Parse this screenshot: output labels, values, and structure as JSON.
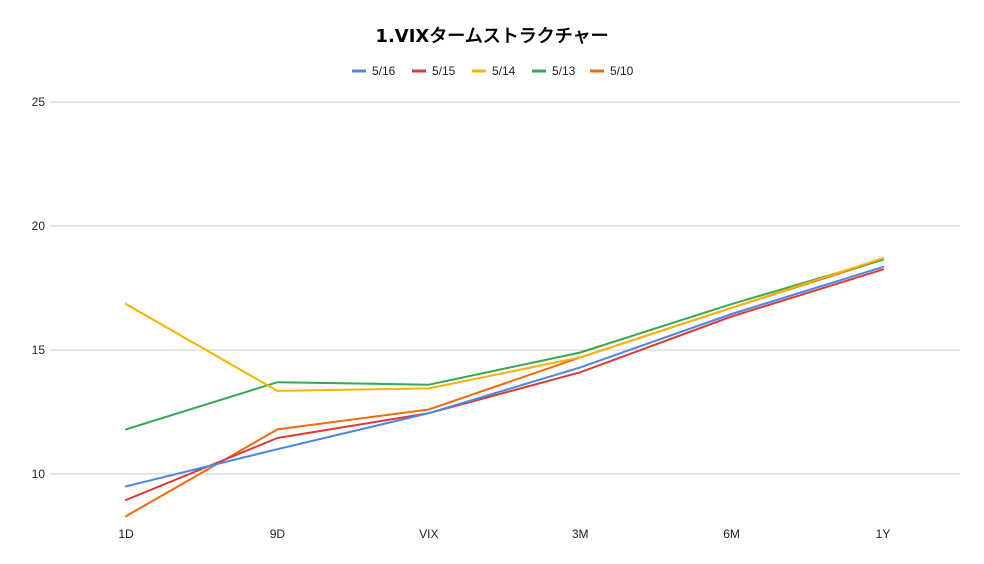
{
  "chart_data": {
    "type": "line",
    "title": "1.VIXタームストラクチャー",
    "xlabel": "",
    "ylabel": "",
    "categories": [
      "1D",
      "9D",
      "VIX",
      "3M",
      "6M",
      "1Y"
    ],
    "ylim": [
      8,
      25
    ],
    "yticks": [
      10,
      15,
      20,
      25
    ],
    "grid": true,
    "legend_position": "top",
    "series": [
      {
        "name": "5/16",
        "color": "#4a86e8",
        "values": [
          9.5,
          11.0,
          12.45,
          14.3,
          16.45,
          18.35
        ]
      },
      {
        "name": "5/15",
        "color": "#dc3b34",
        "values": [
          8.95,
          11.45,
          12.45,
          14.1,
          16.35,
          18.25
        ]
      },
      {
        "name": "5/14",
        "color": "#f4b400",
        "values": [
          16.85,
          13.35,
          13.45,
          14.7,
          16.7,
          18.7
        ]
      },
      {
        "name": "5/13",
        "color": "#34a853",
        "values": [
          11.8,
          13.7,
          13.6,
          14.9,
          16.85,
          18.65
        ]
      },
      {
        "name": "5/10",
        "color": "#f26a0c",
        "values": [
          8.3,
          11.8,
          12.6,
          14.7,
          16.7,
          18.65
        ]
      }
    ]
  }
}
